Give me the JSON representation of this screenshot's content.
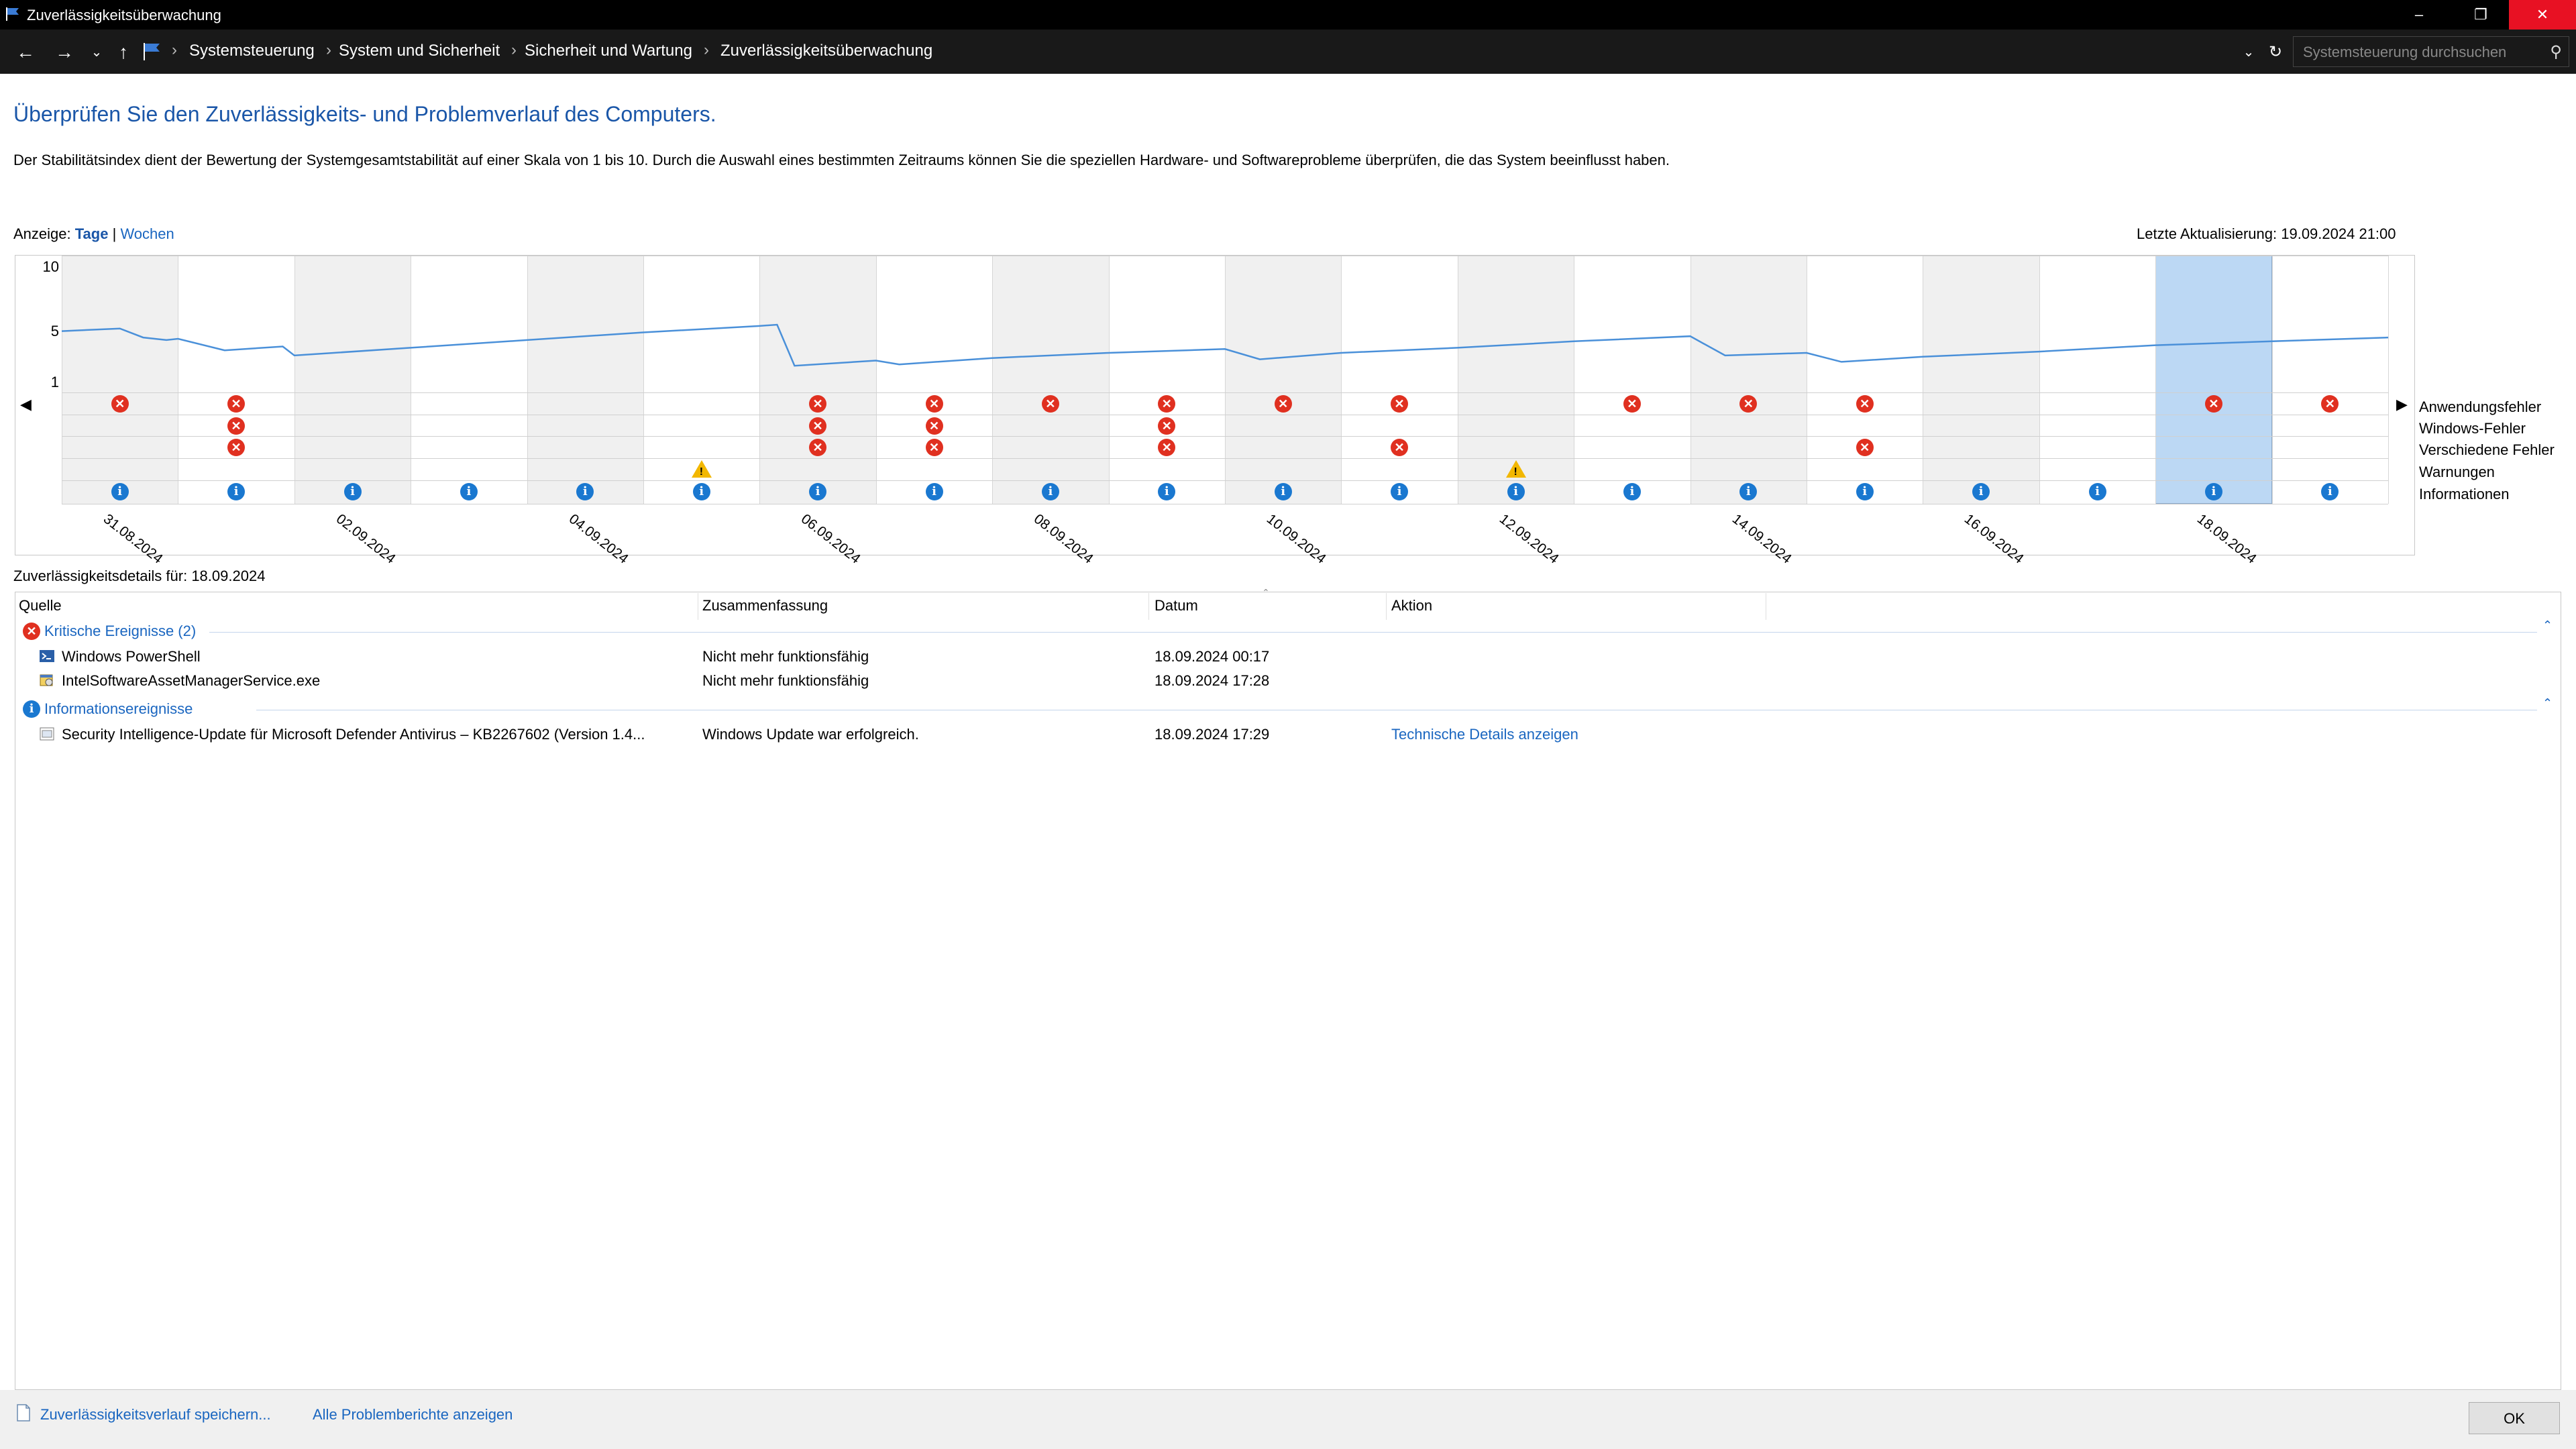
{
  "window": {
    "title": "Zuverlässigkeitsüberwachung"
  },
  "addressbar": {
    "breadcrumbs": [
      "Systemsteuerung",
      "System und Sicherheit",
      "Sicherheit und Wartung",
      "Zuverlässigkeitsüberwachung"
    ],
    "search_placeholder": "Systemsteuerung durchsuchen"
  },
  "main": {
    "heading": "Überprüfen Sie den Zuverlässigkeits- und Problemverlauf des Computers.",
    "description": "Der Stabilitätsindex dient der Bewertung der Systemgesamtstabilität auf einer Skala von 1 bis 10. Durch die Auswahl eines bestimmten Zeitraums können Sie die speziellen Hardware- und Softwareprobleme überprüfen, die das System beeinflusst haben.",
    "view_label": "Anzeige:",
    "view_days": "Tage",
    "view_separator": "|",
    "view_weeks": "Wochen",
    "last_update": "Letzte Aktualisierung: 19.09.2024 21:00"
  },
  "chart_data": {
    "type": "line",
    "y_ticks": [
      "10",
      "5",
      "1"
    ],
    "ylim": [
      1,
      10
    ],
    "date_labels": [
      "31.08.2024",
      "02.09.2024",
      "04.09.2024",
      "06.09.2024",
      "08.09.2024",
      "10.09.2024",
      "12.09.2024",
      "14.09.2024",
      "16.09.2024",
      "18.09.2024"
    ],
    "selected_day": "18.09.2024",
    "row_labels": [
      "Anwendungsfehler",
      "Windows-Fehler",
      "Verschiedene Fehler",
      "Warnungen",
      "Informationen"
    ],
    "stability_index": [
      [
        0.0,
        5.0
      ],
      [
        0.5,
        5.2
      ],
      [
        0.7,
        4.5
      ],
      [
        0.9,
        4.3
      ],
      [
        1.0,
        4.4
      ],
      [
        1.4,
        3.5
      ],
      [
        1.9,
        3.8
      ],
      [
        2.0,
        3.1
      ],
      [
        3.0,
        3.7
      ],
      [
        4.0,
        4.3
      ],
      [
        5.0,
        4.9
      ],
      [
        6.0,
        5.4
      ],
      [
        6.15,
        5.5
      ],
      [
        6.3,
        2.3
      ],
      [
        7.0,
        2.7
      ],
      [
        7.2,
        2.4
      ],
      [
        8.0,
        2.9
      ],
      [
        9.0,
        3.3
      ],
      [
        10.0,
        3.6
      ],
      [
        10.3,
        2.8
      ],
      [
        11.0,
        3.3
      ],
      [
        12.0,
        3.7
      ],
      [
        13.0,
        4.2
      ],
      [
        14.0,
        4.6
      ],
      [
        14.3,
        3.1
      ],
      [
        15.0,
        3.3
      ],
      [
        15.3,
        2.6
      ],
      [
        16.0,
        3.0
      ],
      [
        17.0,
        3.4
      ],
      [
        18.0,
        3.9
      ],
      [
        19.0,
        4.2
      ],
      [
        20.0,
        4.5
      ]
    ],
    "events": {
      "app_errors": [
        0,
        1,
        6,
        7,
        8,
        9,
        10,
        11,
        13,
        14,
        15,
        18,
        19
      ],
      "windows_errors": [
        1,
        6,
        7,
        9
      ],
      "misc_errors": [
        1,
        6,
        7,
        9,
        11,
        15
      ],
      "warnings": [
        5,
        12
      ],
      "information": [
        0,
        1,
        2,
        3,
        4,
        5,
        6,
        7,
        8,
        9,
        10,
        11,
        12,
        13,
        14,
        15,
        16,
        17,
        18,
        19
      ]
    }
  },
  "details": {
    "label": "Zuverlässigkeitsdetails für: 18.09.2024",
    "columns": [
      "Quelle",
      "Zusammenfassung",
      "Datum",
      "Aktion"
    ],
    "groups": [
      {
        "title": "Kritische Ereignisse (2)",
        "rows": [
          {
            "source": "Windows PowerShell",
            "summary": "Nicht mehr funktionsfähig",
            "date": "18.09.2024 00:17",
            "action": ""
          },
          {
            "source": "IntelSoftwareAssetManagerService.exe",
            "summary": "Nicht mehr funktionsfähig",
            "date": "18.09.2024 17:28",
            "action": ""
          }
        ]
      },
      {
        "title": "Informationsereignisse",
        "rows": [
          {
            "source": "Security Intelligence-Update für Microsoft Defender Antivirus – KB2267602 (Version 1.4...",
            "summary": "Windows Update war erfolgreich.",
            "date": "18.09.2024 17:29",
            "action": "Technische Details anzeigen"
          }
        ]
      }
    ]
  },
  "footer": {
    "save_history": "Zuverlässigkeitsverlauf speichern...",
    "all_reports": "Alle Problemberichte anzeigen",
    "ok": "OK"
  },
  "colors": {
    "accent": "#1a56a8",
    "link": "#1a66c0",
    "error": "#e03020",
    "info": "#1a78d0",
    "warning": "#f2b700",
    "selected": "#bcd8f4"
  }
}
